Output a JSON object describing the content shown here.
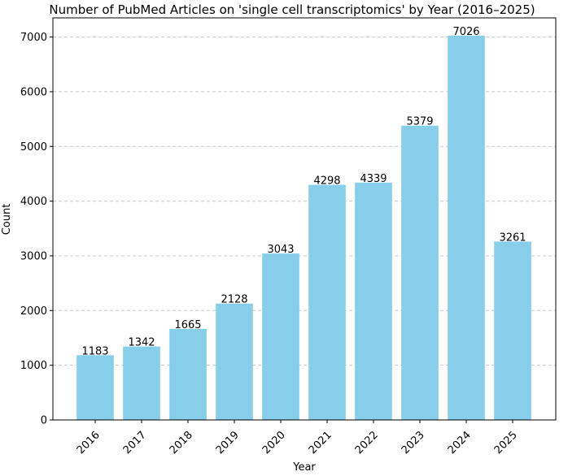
{
  "chart_data": {
    "type": "bar",
    "title": "Number of PubMed Articles on 'single cell transcriptomics' by Year (2016–2025)",
    "xlabel": "Year",
    "ylabel": "Count",
    "categories": [
      "2016",
      "2017",
      "2018",
      "2019",
      "2020",
      "2021",
      "2022",
      "2023",
      "2024",
      "2025"
    ],
    "values": [
      1183,
      1342,
      1665,
      2128,
      3043,
      4298,
      4339,
      5379,
      7026,
      3261
    ],
    "data_labels": [
      "1183",
      "1342",
      "1665",
      "2128",
      "3043",
      "4298",
      "4339",
      "5379",
      "7026",
      "3261"
    ],
    "ylim": [
      0,
      7350
    ],
    "yticks": [
      0,
      1000,
      2000,
      3000,
      4000,
      5000,
      6000,
      7000
    ],
    "ytick_labels": [
      "0",
      "1000",
      "2000",
      "3000",
      "4000",
      "5000",
      "6000",
      "7000"
    ],
    "grid": "y-dashed",
    "legend": "none",
    "bar_color": "#87CEEB",
    "grid_color": "#c8c8c8"
  }
}
